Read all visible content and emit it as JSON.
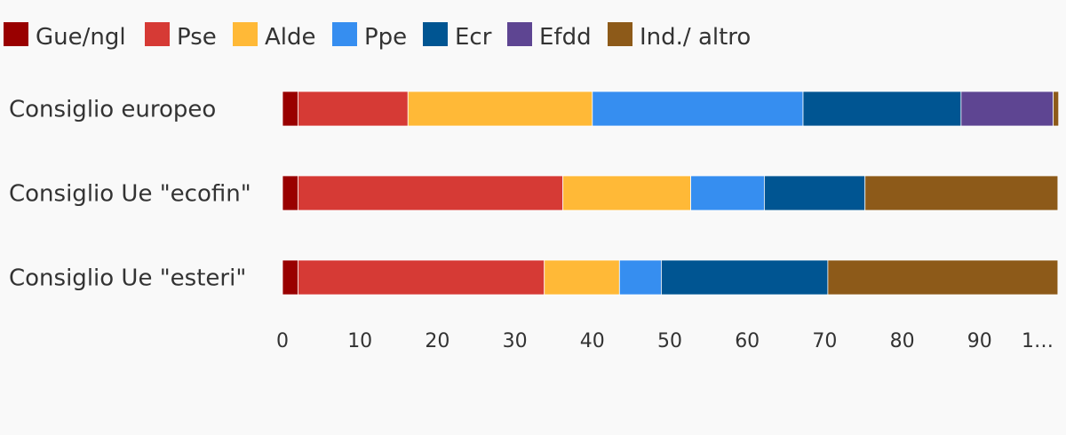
{
  "chart_data": {
    "type": "bar",
    "orientation": "horizontal",
    "stacked": true,
    "categories": [
      "Consiglio europeo",
      "Consiglio Ue \"ecofin\"",
      "Consiglio Ue \"esteri\""
    ],
    "series": [
      {
        "name": "Gue/ngl",
        "color": "#990000",
        "values": [
          2,
          2,
          2
        ]
      },
      {
        "name": "Pse",
        "color": "#d63a35",
        "values": [
          14.2,
          34.2,
          31.8
        ]
      },
      {
        "name": "Alde",
        "color": "#ffb937",
        "values": [
          23.8,
          16.5,
          9.7
        ]
      },
      {
        "name": "Ppe",
        "color": "#368ef0",
        "values": [
          27.2,
          9.5,
          5.4
        ]
      },
      {
        "name": "Ecr",
        "color": "#005592",
        "values": [
          20.4,
          13.0,
          21.5
        ]
      },
      {
        "name": "Efdd",
        "color": "#5e4592",
        "values": [
          11.9,
          0,
          0
        ]
      },
      {
        "name": "Ind./ altro",
        "color": "#8d5a19",
        "values": [
          0.7,
          24.9,
          29.7
        ]
      }
    ],
    "xticks": [
      "0",
      "10",
      "20",
      "30",
      "40",
      "50",
      "60",
      "70",
      "80",
      "90",
      "1…"
    ],
    "xtick_values": [
      0,
      10,
      20,
      30,
      40,
      50,
      60,
      70,
      80,
      90,
      100
    ],
    "xlim": [
      0,
      100
    ],
    "legend_position": "top-left",
    "grid": false
  }
}
